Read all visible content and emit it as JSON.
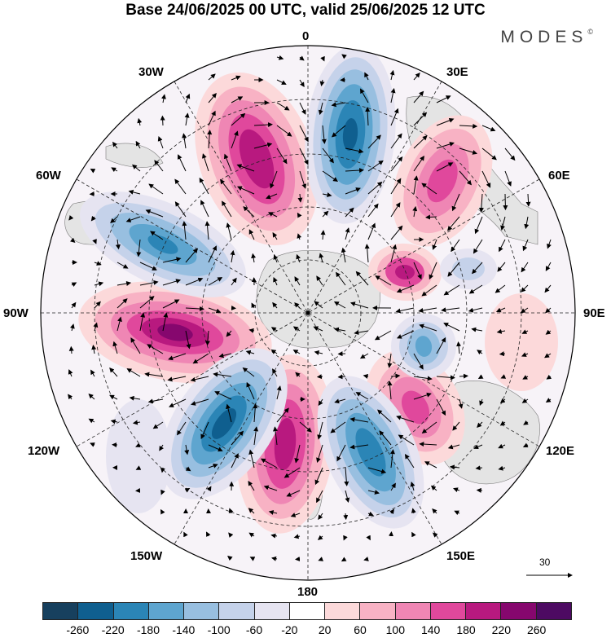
{
  "title": "Base 24/06/2025 00 UTC, valid 25/06/2025 12 UTC",
  "brand": "MODES",
  "brand_mark": "©",
  "longitude_labels": {
    "lon_0": "0",
    "lon_30e": "30E",
    "lon_60e": "60E",
    "lon_90e": "90E",
    "lon_120e": "120E",
    "lon_150e": "150E",
    "lon_180": "180",
    "lon_150w": "150W",
    "lon_120w": "120W",
    "lon_90w": "90W",
    "lon_60w": "60W",
    "lon_30w": "30W"
  },
  "vector_scale_label": "30",
  "colorbar": {
    "colors": [
      "#17405e",
      "#0f5f8f",
      "#2b85b6",
      "#5ea5cf",
      "#98bfe0",
      "#c5d2ea",
      "#e6e4f1",
      "#ffffff",
      "#fcd9da",
      "#f8b2c4",
      "#ef86b4",
      "#e0489c",
      "#b8197f",
      "#86076e",
      "#4d0a62"
    ],
    "ticks": [
      "-260",
      "-220",
      "-180",
      "-140",
      "-100",
      "-60",
      "-20",
      "20",
      "60",
      "100",
      "140",
      "180",
      "220",
      "260"
    ]
  },
  "palette": {
    "land": "#e8e8e8",
    "frame": "#000000",
    "grid": "#222222"
  }
}
